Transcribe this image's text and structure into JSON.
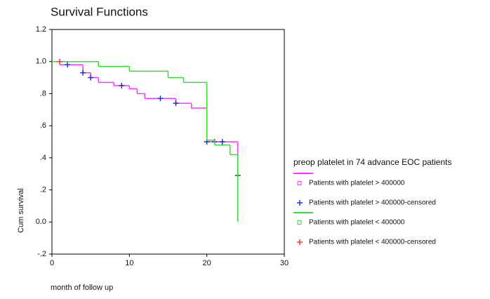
{
  "chart_data": {
    "type": "step",
    "title": "Survival Functions",
    "y_label": "Cum survival",
    "x_label": "month of follow up",
    "legend_title": "preop platelet in 74 advance EOC patients",
    "legend": "right",
    "xlim": [
      0,
      30
    ],
    "xticks": [
      0,
      10,
      20,
      30
    ],
    "ylim": [
      -0.2,
      1.2
    ],
    "yticks": [
      1.2,
      {
        "value": 1.0,
        "label": "1.0"
      },
      {
        "value": 0.8,
        "label": ".8"
      },
      {
        "value": 0.6,
        "label": ".6"
      },
      {
        "value": 0.4,
        "label": ".4"
      },
      {
        "value": 0.2,
        "label": ".2"
      },
      {
        "value": 0.0,
        "label": "0.0"
      },
      {
        "value": -0.2,
        "label": "-.2"
      }
    ],
    "series": [
      {
        "name": "Patients with platelet > 400000",
        "color": "#ff33ff",
        "kind": "step",
        "marker": "square",
        "x": [
          1,
          4,
          5,
          6,
          8,
          10,
          11,
          12,
          16,
          18,
          20,
          24
        ],
        "values": [
          0.98,
          0.93,
          0.9,
          0.87,
          0.85,
          0.83,
          0.8,
          0.77,
          0.74,
          0.71,
          0.5,
          0.29
        ]
      },
      {
        "name": "Patients with platelet > 400000-censored",
        "color": "#2233cc",
        "kind": "censor",
        "marker": "plus",
        "x": [
          2,
          4,
          5,
          9,
          14,
          16,
          20,
          21,
          22,
          24
        ],
        "values": [
          0.98,
          0.93,
          0.9,
          0.85,
          0.77,
          0.74,
          0.5,
          0.5,
          0.5,
          0.29
        ]
      },
      {
        "name": "Patients with platelet < 400000",
        "color": "#33dd33",
        "kind": "step",
        "marker": "square",
        "x": [
          0,
          6,
          10,
          15,
          17,
          20,
          21,
          23,
          24
        ],
        "values": [
          1.0,
          0.97,
          0.94,
          0.9,
          0.87,
          0.51,
          0.48,
          0.42,
          0.0
        ]
      },
      {
        "name": "Patients with platelet < 400000-censored",
        "color": "#ff3333",
        "kind": "censor",
        "marker": "plus",
        "x": [
          1
        ],
        "values": [
          1.0
        ]
      }
    ]
  }
}
